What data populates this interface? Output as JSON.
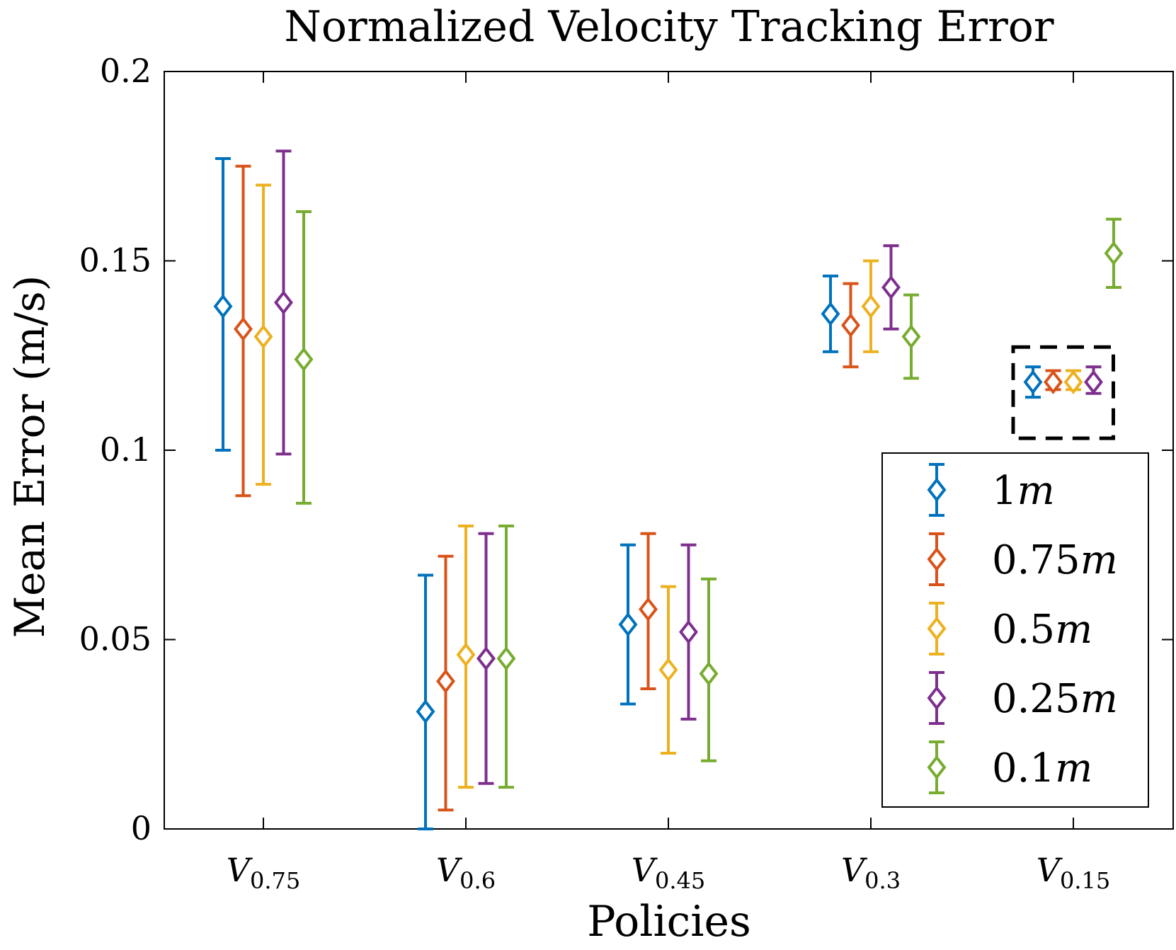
{
  "chart_data": {
    "type": "scatter",
    "title": "Normalized Velocity Tracking Error",
    "xlabel": "Policies",
    "ylabel": "Mean Error (m/s)",
    "ylim": [
      0,
      0.2
    ],
    "yticks": [
      "0",
      "0.05",
      "0.1",
      "0.15",
      "0.2"
    ],
    "ytick_values": [
      0,
      0.05,
      0.1,
      0.15,
      0.2
    ],
    "categories": [
      {
        "base": "V",
        "sub": "0.75"
      },
      {
        "base": "V",
        "sub": "0.6"
      },
      {
        "base": "V",
        "sub": "0.45"
      },
      {
        "base": "V",
        "sub": "0.3"
      },
      {
        "base": "V",
        "sub": "0.15"
      }
    ],
    "marker": "diamond",
    "error_bars": true,
    "legend_position": "bottom-right",
    "series": [
      {
        "name": "1",
        "unit": "m",
        "color": "#0072BD",
        "mean": [
          0.138,
          0.031,
          0.054,
          0.136,
          0.118
        ],
        "lower": [
          0.1,
          0.0,
          0.033,
          0.126,
          0.114
        ],
        "upper": [
          0.177,
          0.067,
          0.075,
          0.146,
          0.122
        ]
      },
      {
        "name": "0.75",
        "unit": "m",
        "color": "#D95319",
        "mean": [
          0.132,
          0.039,
          0.058,
          0.133,
          0.118
        ],
        "lower": [
          0.088,
          0.005,
          0.037,
          0.122,
          0.116
        ],
        "upper": [
          0.175,
          0.072,
          0.078,
          0.144,
          0.121
        ]
      },
      {
        "name": "0.5",
        "unit": "m",
        "color": "#EDB120",
        "mean": [
          0.13,
          0.046,
          0.042,
          0.138,
          0.118
        ],
        "lower": [
          0.091,
          0.011,
          0.02,
          0.126,
          0.116
        ],
        "upper": [
          0.17,
          0.08,
          0.064,
          0.15,
          0.121
        ]
      },
      {
        "name": "0.25",
        "unit": "m",
        "color": "#7E2F8E",
        "mean": [
          0.139,
          0.045,
          0.052,
          0.143,
          0.118
        ],
        "lower": [
          0.099,
          0.012,
          0.029,
          0.132,
          0.115
        ],
        "upper": [
          0.179,
          0.078,
          0.075,
          0.154,
          0.122
        ]
      },
      {
        "name": "0.1",
        "unit": "m",
        "color": "#77AC30",
        "mean": [
          0.124,
          0.045,
          0.041,
          0.13,
          0.152
        ],
        "lower": [
          0.086,
          0.011,
          0.018,
          0.119,
          0.143
        ],
        "upper": [
          0.163,
          0.08,
          0.066,
          0.141,
          0.161
        ]
      }
    ],
    "annotation": {
      "type": "dashed-box",
      "color": "#000000",
      "category": 4,
      "series": [
        0,
        1,
        2,
        3
      ]
    }
  }
}
